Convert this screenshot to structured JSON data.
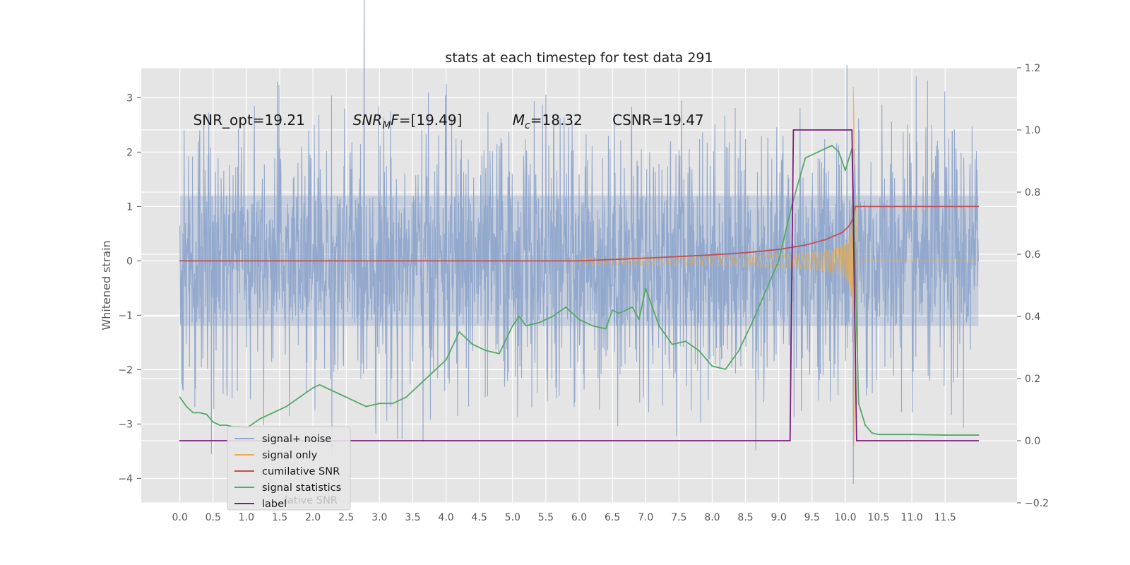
{
  "chart_data": {
    "type": "line",
    "title": "stats at each timestep for test data 291",
    "ylabel": "Whitened strain",
    "xlim": [
      -0.58,
      12.58
    ],
    "ylim": [
      -4.45,
      3.55
    ],
    "y2lim": [
      -0.2,
      1.2
    ],
    "x_ticks": [
      "0.0",
      "0.5",
      "1.0",
      "1.5",
      "2.0",
      "2.5",
      "3.0",
      "3.5",
      "4.0",
      "4.5",
      "5.0",
      "5.5",
      "6.0",
      "6.5",
      "7.0",
      "7.5",
      "8.0",
      "8.5",
      "9.0",
      "9.5",
      "10.0",
      "10.5",
      "11.0",
      "11.5"
    ],
    "y_ticks": [
      "3",
      "2",
      "1",
      "0",
      "−1",
      "−2",
      "−3",
      "−4"
    ],
    "y2_ticks": [
      "1.2",
      "1.0",
      "0.8",
      "0.6",
      "0.4",
      "0.2",
      "0.0",
      "−0.2"
    ],
    "grid": true,
    "annotations": [
      {
        "id": "snr-opt",
        "text": "SNR_opt=19.21",
        "x": 0.2,
        "y": 2.5
      },
      {
        "id": "snr-mf",
        "base": "SNR",
        "sub": "M",
        "rest": "F=[19.49]",
        "x": 2.6,
        "y": 2.5
      },
      {
        "id": "mc",
        "base": "M",
        "sub": "c",
        "rest": "=18.32",
        "x": 5.0,
        "y": 2.5
      },
      {
        "id": "csnr",
        "text": "CSNR=19.47",
        "x": 6.5,
        "y": 2.5
      }
    ],
    "legend": {
      "placement": "lower-left",
      "entries": [
        "signal+ noise",
        "signal only",
        "cumilative SNR",
        "signal statistics",
        "label"
      ],
      "ghost_text": "lative SNR"
    },
    "series": [
      {
        "name": "signal+ noise",
        "color": "#8fa5cb",
        "axis": "left",
        "render": "noise",
        "x_range": [
          0.0,
          12.0
        ],
        "spread": 1.2,
        "t_spike": 10.12,
        "spike_min": -4.1,
        "spike_max": 2.85
      },
      {
        "name": "signal only",
        "color": "#e8ad4f",
        "axis": "left",
        "render": "chirp",
        "t_merge": 10.12,
        "peak": 3.2,
        "trough": -3.4,
        "onset": 6.0
      },
      {
        "name": "cumilative SNR",
        "color": "#c44e52",
        "axis": "left",
        "x": [
          0.0,
          5.0,
          6.0,
          7.0,
          7.5,
          8.0,
          8.5,
          9.0,
          9.4,
          9.7,
          9.95,
          10.05,
          10.12,
          10.15,
          12.0
        ],
        "y": [
          0.0,
          0.0,
          0.0,
          0.05,
          0.08,
          0.11,
          0.15,
          0.21,
          0.29,
          0.39,
          0.52,
          0.63,
          0.78,
          1.0,
          1.0
        ]
      },
      {
        "name": "signal statistics",
        "color": "#55a868",
        "axis": "right",
        "x": [
          0.0,
          0.1,
          0.2,
          0.3,
          0.4,
          0.5,
          0.6,
          0.7,
          0.8,
          0.9,
          1.0,
          1.2,
          1.4,
          1.6,
          1.8,
          2.0,
          2.1,
          2.2,
          2.4,
          2.6,
          2.8,
          3.0,
          3.2,
          3.4,
          3.6,
          3.8,
          4.0,
          4.2,
          4.4,
          4.6,
          4.8,
          5.0,
          5.1,
          5.2,
          5.4,
          5.6,
          5.8,
          6.0,
          6.2,
          6.4,
          6.5,
          6.6,
          6.8,
          6.9,
          7.0,
          7.1,
          7.2,
          7.4,
          7.6,
          7.8,
          8.0,
          8.2,
          8.4,
          8.6,
          8.8,
          9.0,
          9.2,
          9.4,
          9.6,
          9.8,
          9.9,
          10.0,
          10.1,
          10.15,
          10.2,
          10.3,
          10.4,
          10.5,
          11.0,
          11.5,
          12.0
        ],
        "y": [
          0.14,
          0.11,
          0.09,
          0.09,
          0.085,
          0.06,
          0.05,
          0.05,
          0.045,
          0.045,
          0.04,
          0.07,
          0.09,
          0.11,
          0.14,
          0.17,
          0.18,
          0.17,
          0.15,
          0.13,
          0.11,
          0.12,
          0.12,
          0.14,
          0.18,
          0.22,
          0.26,
          0.35,
          0.31,
          0.29,
          0.28,
          0.37,
          0.4,
          0.37,
          0.38,
          0.4,
          0.43,
          0.39,
          0.37,
          0.36,
          0.42,
          0.41,
          0.43,
          0.39,
          0.49,
          0.43,
          0.37,
          0.31,
          0.32,
          0.29,
          0.24,
          0.23,
          0.29,
          0.38,
          0.48,
          0.58,
          0.76,
          0.91,
          0.93,
          0.95,
          0.93,
          0.87,
          0.94,
          0.55,
          0.12,
          0.05,
          0.025,
          0.02,
          0.02,
          0.018,
          0.018
        ]
      },
      {
        "name": "label",
        "color": "#7b1f7b",
        "axis": "right",
        "x": [
          0.0,
          9.17,
          9.22,
          10.08,
          10.1,
          10.17,
          12.0
        ],
        "y": [
          0.0,
          0.0,
          1.0,
          1.0,
          1.0,
          0.0,
          0.0
        ]
      }
    ]
  }
}
